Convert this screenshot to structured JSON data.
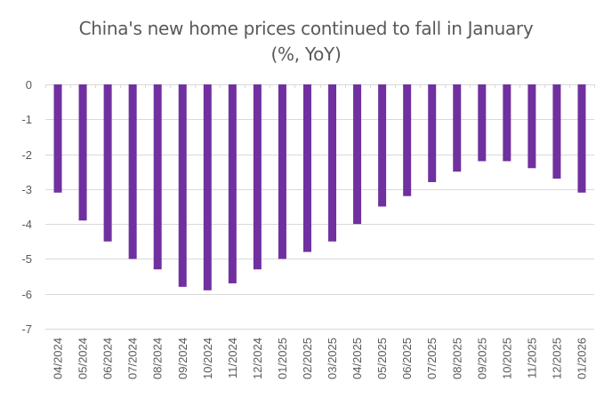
{
  "chart_data": {
    "type": "bar",
    "title": "China's new home prices continued to fall in January",
    "subtitle": "(%, YoY)",
    "xlabel": "",
    "ylabel": "",
    "ylim": [
      -7,
      0
    ],
    "yticks": [
      0,
      -1,
      -2,
      -3,
      -4,
      -5,
      -6,
      -7
    ],
    "grid": true,
    "legend": "none",
    "bar_color": "#7030A0",
    "categories": [
      "04/2024",
      "05/2024",
      "06/2024",
      "07/2024",
      "08/2024",
      "09/2024",
      "10/2024",
      "11/2024",
      "12/2024",
      "01/2025",
      "02/2025",
      "03/2025",
      "04/2025",
      "05/2025",
      "06/2025",
      "07/2025",
      "08/2025",
      "09/2025",
      "10/2025",
      "11/2025",
      "12/2025",
      "01/2026"
    ],
    "values": [
      -3.1,
      -3.9,
      -4.5,
      -5.0,
      -5.3,
      -5.8,
      -5.9,
      -5.7,
      -5.3,
      -5.0,
      -4.8,
      -4.5,
      -4.0,
      -3.5,
      -3.2,
      -2.8,
      -2.5,
      -2.2,
      -2.2,
      -2.4,
      -2.7,
      -3.1
    ]
  }
}
